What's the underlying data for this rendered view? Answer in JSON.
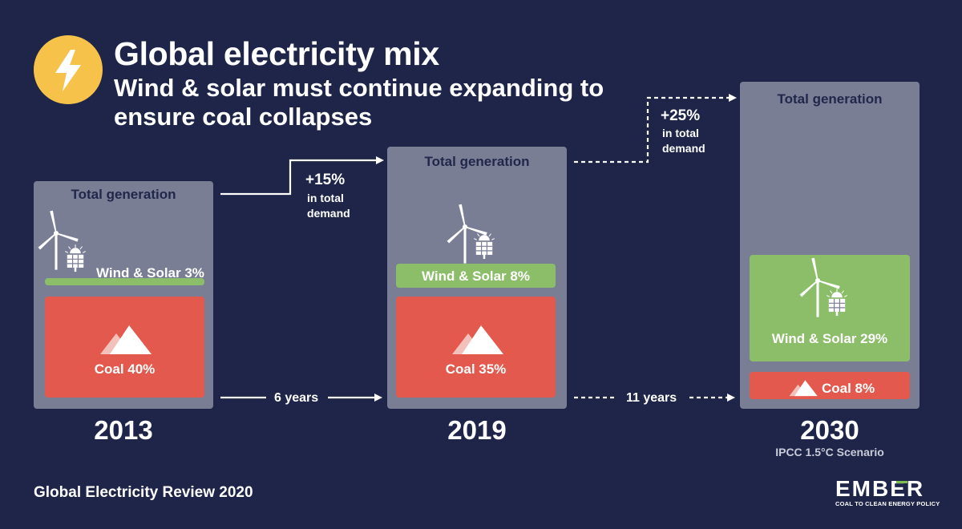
{
  "chart_data": {
    "type": "bar",
    "title": "Global electricity mix",
    "subtitle": "Wind & solar must continue expanding to ensure coal collapses",
    "panel_label": "Total generation",
    "categories": [
      "2013",
      "2019",
      "2030"
    ],
    "series": [
      {
        "name": "Wind & Solar",
        "values": [
          3,
          8,
          29
        ],
        "labels": [
          "Wind & Solar 3%",
          "Wind & Solar 8%",
          "Wind & Solar 29%"
        ]
      },
      {
        "name": "Coal",
        "values": [
          40,
          35,
          8
        ],
        "labels": [
          "Coal 40%",
          "Coal 35%",
          "Coal 8%"
        ]
      }
    ],
    "scenario_note": "IPCC 1.5°C Scenario",
    "transitions": [
      {
        "demand_change": "+15%",
        "demand_note_line1": "in total",
        "demand_note_line2": "demand",
        "years": "6 years"
      },
      {
        "demand_change": "+25%",
        "demand_note_line1": "in total",
        "demand_note_line2": "demand",
        "years": "11 years"
      }
    ]
  },
  "footer": {
    "source": "Global Electricity Review 2020"
  },
  "logo": {
    "name": "EMBER",
    "tagline": "COAL TO CLEAN ENERGY POLICY"
  },
  "colors": {
    "background": "#1e2549",
    "panel": "#7a7e95",
    "wind_solar": "#8cbe6a",
    "coal": "#e3594d",
    "accent": "#f6c24a",
    "logo_green": "#7fbf4d"
  },
  "icons": [
    "lightning-bolt-icon",
    "wind-turbine-icon",
    "solar-panel-icon",
    "mountain-icon"
  ]
}
